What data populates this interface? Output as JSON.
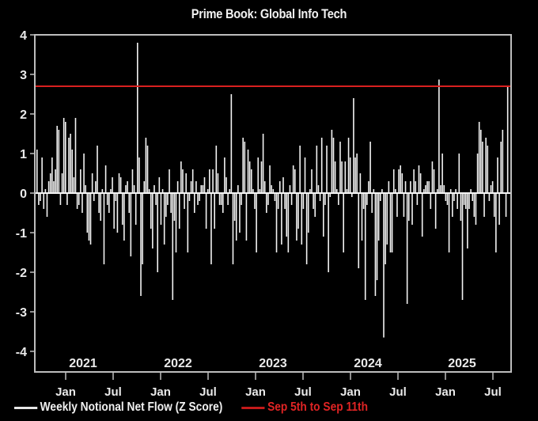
{
  "chart_data": {
    "type": "bar",
    "title": "Prime Book: Global Info Tech",
    "xlabel": "",
    "ylabel": "",
    "ylim": [
      -4.5,
      4.0
    ],
    "yticks": [
      4,
      3,
      2,
      1,
      0,
      -1,
      -2,
      -3,
      -4
    ],
    "xticks_months": [
      "Jan",
      "Jul",
      "Jan",
      "Jul",
      "Jan",
      "Jul",
      "Jan",
      "Jul",
      "Jan",
      "Jul"
    ],
    "year_labels": [
      "2021",
      "2022",
      "2023",
      "2024",
      "2025"
    ],
    "grid": false,
    "legend_position": "bottom",
    "frequency": "weekly",
    "x_start": "2020-10",
    "x_end": "2025-09",
    "series": [
      {
        "name": "Weekly Notional Net Flow (Z Score)",
        "color": "#ffffff",
        "values": [
          1.1,
          -0.3,
          -0.2,
          0.9,
          -0.4,
          0.1,
          -0.6,
          0.3,
          0.5,
          0.9,
          0.3,
          0.6,
          1.7,
          1.6,
          -0.3,
          0.5,
          1.9,
          1.8,
          -0.3,
          1.4,
          1.5,
          1.1,
          0.4,
          1.9,
          -0.4,
          -0.3,
          0.6,
          -0.5,
          1.0,
          0.2,
          -1.0,
          -1.2,
          -1.3,
          0.5,
          -0.2,
          0.3,
          1.2,
          -0.5,
          -0.7,
          0.1,
          -1.8,
          0.7,
          -0.3,
          -0.5,
          0.1,
          0.4,
          -0.9,
          -0.2,
          -1.0,
          0.5,
          0.4,
          -0.8,
          -1.2,
          0.2,
          0.3,
          -0.5,
          -1.6,
          0.6,
          0.2,
          -0.8,
          3.8,
          0.9,
          -2.6,
          -1.8,
          0.3,
          1.4,
          1.2,
          0.1,
          -0.9,
          -1.4,
          0.2,
          -0.3,
          -2.0,
          0.4,
          -0.8,
          0.1,
          -1.3,
          -0.6,
          -0.3,
          0.6,
          -0.5,
          -2.7,
          -0.7,
          -1.5,
          0.3,
          -0.9,
          0.8,
          0.6,
          -0.4,
          0.5,
          -1.5,
          -0.2,
          0.3,
          0.6,
          -0.5,
          0.3,
          -0.3,
          -0.2,
          0.2,
          0.2,
          0.4,
          -0.9,
          0.1,
          0.6,
          -1.8,
          0.6,
          -0.9,
          1.2,
          0.5,
          -0.3,
          -0.3,
          -0.5,
          0.9,
          0.4,
          -0.3,
          0.1,
          2.5,
          -1.8,
          -0.7,
          -1.2,
          0.2,
          -1.0,
          -0.3,
          1.4,
          1.3,
          -1.2,
          1.1,
          0.8,
          0.6,
          0.1,
          -0.4,
          -1.5,
          0.9,
          0.1,
          0.8,
          1.5,
          0.3,
          -0.5,
          -0.3,
          0.7,
          0.2,
          0.1,
          -0.2,
          -1.5,
          -0.4,
          0.3,
          -1.3,
          0.4,
          -0.4,
          -1.1,
          -1.5,
          0.2,
          -0.3,
          0.7,
          0.6,
          -1.2,
          -0.9,
          1.2,
          -1.3,
          -0.4,
          0.9,
          -1.8,
          -1.0,
          0.1,
          0.6,
          -0.4,
          -0.6,
          1.2,
          0.2,
          -0.2,
          1.4,
          -1.1,
          -0.3,
          1.2,
          -2.0,
          -0.1,
          1.6,
          1.4,
          0.8,
          0.1,
          -0.3,
          1.3,
          0.8,
          -1.5,
          0.8,
          0.1,
          1.4,
          0.9,
          -0.1,
          2.4,
          0.9,
          1.0,
          -1.9,
          0.5,
          -1.2,
          -0.4,
          -2.7,
          -0.3,
          0.3,
          1.3,
          -0.5,
          0.1,
          -2.6,
          -2.2,
          -1.2,
          -0.2,
          0.1,
          -3.65,
          -1.8,
          -1.3,
          0.3,
          -1.5,
          -1.5,
          0.6,
          0.1,
          -0.6,
          0.6,
          0.7,
          0.5,
          -0.6,
          0.3,
          -2.8,
          -0.7,
          0.3,
          -0.8,
          0.6,
          0.3,
          -0.3,
          0.7,
          0.5,
          -1.1,
          0.1,
          0.2,
          0.3,
          0.3,
          -0.4,
          0.8,
          0.6,
          -0.9,
          0.1,
          2.87,
          0.2,
          1.0,
          0.2,
          -0.2,
          -0.3,
          -1.5,
          0.1,
          -0.6,
          -0.2,
          0.1,
          -0.4,
          1.0,
          -0.7,
          -2.7,
          -0.3,
          -0.4,
          -1.4,
          -0.4,
          0.1,
          -0.2,
          -0.6,
          -0.8,
          1.0,
          1.8,
          1.6,
          1.3,
          -0.6,
          1.4,
          1.2,
          -0.2,
          0.2,
          0.3,
          -0.6,
          -1.5,
          0.9,
          -0.8,
          1.3,
          1.6,
          0.0,
          -0.6,
          2.7
        ]
      },
      {
        "name": "Sep 5th to Sep 11th",
        "color": "#d9201f",
        "type": "hline",
        "value": 2.7
      }
    ]
  },
  "legend": {
    "item1": "Weekly Notional Net Flow (Z Score)",
    "item2": "Sep 5th to Sep 11th"
  }
}
